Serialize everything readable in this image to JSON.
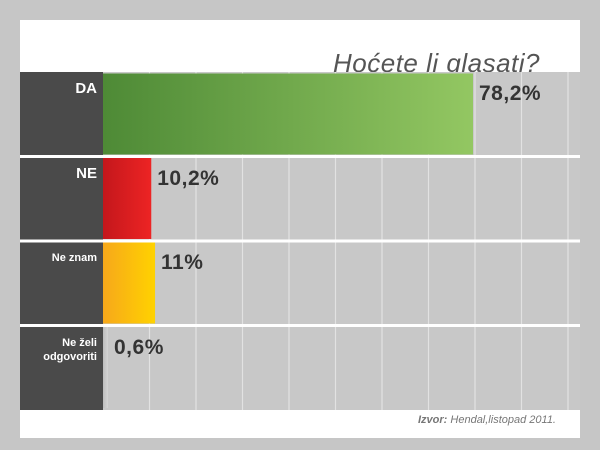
{
  "chart_data": {
    "type": "bar",
    "orientation": "horizontal",
    "title": "Hoćete li glasati?",
    "categories": [
      "DA",
      "NE",
      "Ne znam",
      "Ne želi odgovoriti"
    ],
    "values": [
      78.2,
      10.2,
      11,
      0.6
    ],
    "value_labels": [
      "78,2%",
      "10,2%",
      "11%",
      "0,6%"
    ],
    "xlim": [
      0,
      100
    ],
    "colors": [
      [
        "#4e8a36",
        "#93c762"
      ],
      [
        "#c4171c",
        "#ed2424"
      ],
      [
        "#f7a81b",
        "#ffd200"
      ],
      [
        "#bdbdbd",
        "#d4d4d4"
      ]
    ],
    "grid": true
  },
  "source": {
    "label": "Izvor:",
    "text": "Hendal,listopad 2011."
  }
}
